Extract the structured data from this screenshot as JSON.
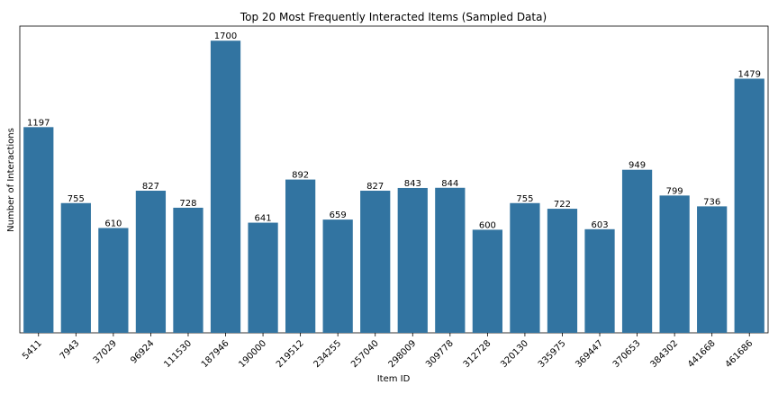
{
  "chart_data": {
    "type": "bar",
    "title": "Top 20 Most Frequently Interacted Items (Sampled Data)",
    "xlabel": "Item ID",
    "ylabel": "Number of Interactions",
    "categories": [
      "5411",
      "7943",
      "37029",
      "96924",
      "111530",
      "187946",
      "190000",
      "219512",
      "234255",
      "257040",
      "298009",
      "309778",
      "312728",
      "320130",
      "335975",
      "369447",
      "370653",
      "384302",
      "441668",
      "461686"
    ],
    "values": [
      1197,
      755,
      610,
      827,
      728,
      1700,
      641,
      892,
      659,
      827,
      843,
      844,
      600,
      755,
      722,
      603,
      949,
      799,
      736,
      1479
    ],
    "ylim": [
      0,
      1785
    ],
    "y_ticks_visible": false,
    "grid": false,
    "legend": "none",
    "bar_color": "#3274a1",
    "data_labels": true,
    "x_tick_rotation": 45
  }
}
